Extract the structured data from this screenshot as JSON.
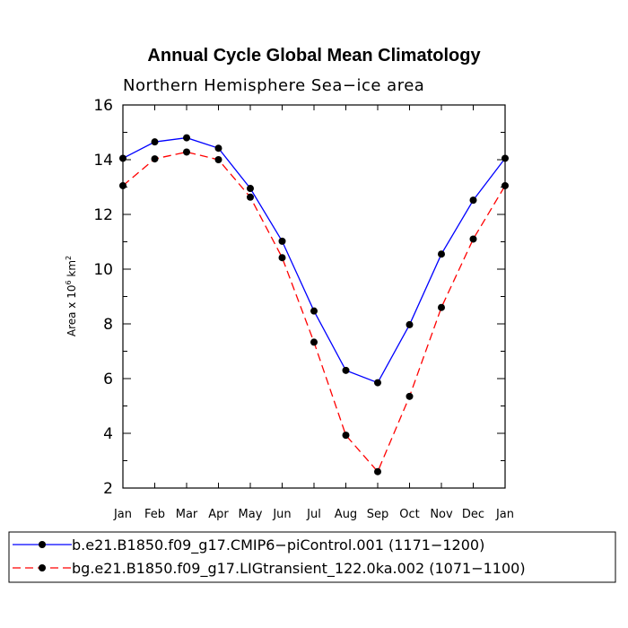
{
  "chart_data": {
    "type": "line",
    "title": "Annual Cycle Global Mean Climatology",
    "subtitle": "Northern Hemisphere Sea−ice area",
    "ylabel_prefix": "Area x 10",
    "ylabel_exp1": "6",
    "ylabel_mid": " km",
    "ylabel_exp2": "2",
    "categories": [
      "Jan",
      "Feb",
      "Mar",
      "Apr",
      "May",
      "Jun",
      "Jul",
      "Aug",
      "Sep",
      "Oct",
      "Nov",
      "Dec",
      "Jan"
    ],
    "ylim": [
      2,
      16
    ],
    "yticks": [
      2,
      4,
      6,
      8,
      10,
      12,
      14,
      16
    ],
    "grid": false,
    "legend_position": "bottom",
    "series": [
      {
        "name": "b.e21.B1850.f09_g17.CMIP6−piControl.001 (1171−1200)",
        "color": "#0000ff",
        "dash": "solid",
        "values": [
          14.05,
          14.65,
          14.8,
          14.42,
          12.95,
          11.02,
          8.47,
          6.3,
          5.85,
          7.97,
          10.55,
          12.52,
          14.05
        ]
      },
      {
        "name": "bg.e21.B1850.f09_g17.LIGtransient_122.0ka.002 (1071−1100)",
        "color": "#ff0000",
        "dash": "dashed",
        "values": [
          13.05,
          14.03,
          14.28,
          14.0,
          12.63,
          10.42,
          7.33,
          3.93,
          2.6,
          5.35,
          8.6,
          11.1,
          13.05
        ]
      }
    ]
  }
}
